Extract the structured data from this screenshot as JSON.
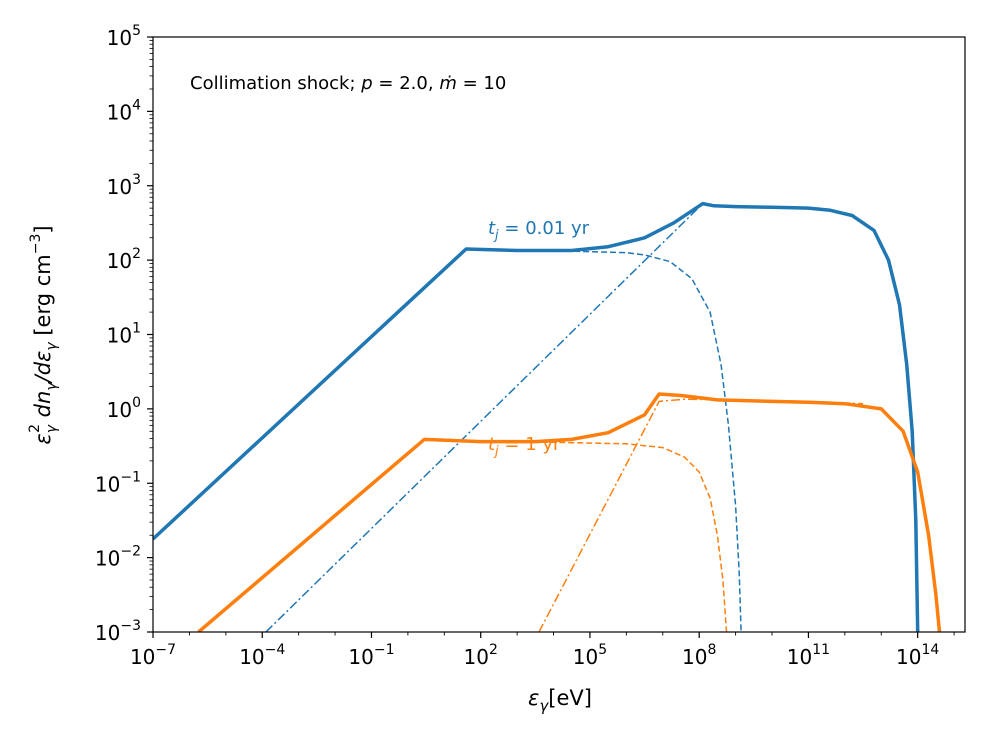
{
  "chart_data": {
    "type": "line",
    "title": "",
    "annotation": "Collimation shock; p = 2.0, ṁ = 10",
    "annotation_parts": {
      "prefix": "Collimation shock; ",
      "p_symbol": "p",
      "p_value": " = 2.0,  ",
      "m_symbol": "ṁ",
      "m_value": " = 10"
    },
    "xlabel": "εγ[eV]",
    "xlabel_parts": {
      "symbol": "ε",
      "sub": "γ",
      "unit": "[eV]"
    },
    "ylabel": "εγ² dnγ/dεγ [erg cm⁻³]",
    "ylabel_parts": {
      "eps": "ε",
      "sub_gamma": "γ",
      "sup_two": "2",
      "dn": " dn",
      "slash_d": "/dε",
      "unit": " [erg cm",
      "unit_exp": "−3",
      "unit_close": "]"
    },
    "xscale": "log",
    "yscale": "log",
    "xlim_exp": [
      -7,
      15.3
    ],
    "ylim_exp": [
      -3,
      5
    ],
    "x_ticks": [
      {
        "base": "10",
        "exp": "−7",
        "value": -7
      },
      {
        "base": "10",
        "exp": "−4",
        "value": -4
      },
      {
        "base": "10",
        "exp": "−1",
        "value": -1
      },
      {
        "base": "10",
        "exp": "2",
        "value": 2
      },
      {
        "base": "10",
        "exp": "5",
        "value": 5
      },
      {
        "base": "10",
        "exp": "8",
        "value": 8
      },
      {
        "base": "10",
        "exp": "11",
        "value": 11
      },
      {
        "base": "10",
        "exp": "14",
        "value": 14
      }
    ],
    "y_ticks": [
      {
        "base": "10",
        "exp": "−3",
        "value": -3
      },
      {
        "base": "10",
        "exp": "−2",
        "value": -2
      },
      {
        "base": "10",
        "exp": "−1",
        "value": -1
      },
      {
        "base": "10",
        "exp": "0",
        "value": 0
      },
      {
        "base": "10",
        "exp": "1",
        "value": 1
      },
      {
        "base": "10",
        "exp": "2",
        "value": 2
      },
      {
        "base": "10",
        "exp": "3",
        "value": 3
      },
      {
        "base": "10",
        "exp": "4",
        "value": 4
      },
      {
        "base": "10",
        "exp": "5",
        "value": 5
      }
    ],
    "grid": false,
    "legend": "none",
    "colors": {
      "blue": "#1f77b4",
      "orange": "#ff7f0e"
    },
    "curve_labels": [
      {
        "symbol": "t",
        "sub": "j",
        "value": " = 0.01 yr",
        "color": "#1f77b4",
        "x_exp": 2.2,
        "y_exp": 2.35
      },
      {
        "symbol": "t",
        "sub": "j",
        "value": " = 1 yr",
        "color": "#ff7f0e",
        "x_exp": 2.2,
        "y_exp": -0.55
      }
    ],
    "series": [
      {
        "label": "t_j = 0.01 yr, total",
        "color": "#1f77b4",
        "style": "solid",
        "width": 3.5,
        "points": [
          [
            -7,
            -1.75
          ],
          [
            1.6,
            2.15
          ],
          [
            3,
            2.13
          ],
          [
            4.5,
            2.13
          ],
          [
            5.5,
            2.18
          ],
          [
            6.5,
            2.3
          ],
          [
            7.3,
            2.5
          ],
          [
            8.1,
            2.76
          ],
          [
            8.4,
            2.73
          ],
          [
            9,
            2.72
          ],
          [
            10,
            2.71
          ],
          [
            11,
            2.7
          ],
          [
            11.6,
            2.67
          ],
          [
            12.2,
            2.6
          ],
          [
            12.8,
            2.4
          ],
          [
            13.2,
            2.0
          ],
          [
            13.5,
            1.4
          ],
          [
            13.7,
            0.6
          ],
          [
            13.85,
            -0.3
          ],
          [
            13.95,
            -1.5
          ],
          [
            14.0,
            -3
          ]
        ]
      },
      {
        "label": "t_j = 0.01 yr, dashed",
        "color": "#1f77b4",
        "style": "dashed",
        "width": 1.5,
        "points": [
          [
            1.6,
            2.15
          ],
          [
            3,
            2.13
          ],
          [
            4.5,
            2.12
          ],
          [
            6,
            2.1
          ],
          [
            6.5,
            2.07
          ],
          [
            7.2,
            1.98
          ],
          [
            7.8,
            1.75
          ],
          [
            8.3,
            1.3
          ],
          [
            8.6,
            0.6
          ],
          [
            8.8,
            -0.2
          ],
          [
            9.0,
            -1.3
          ],
          [
            9.1,
            -2.2
          ],
          [
            9.15,
            -3
          ]
        ]
      },
      {
        "label": "t_j = 0.01 yr, dash-dot",
        "color": "#1f77b4",
        "style": "dashdot",
        "width": 1.5,
        "points": [
          [
            -3.9,
            -3
          ],
          [
            8.1,
            2.76
          ]
        ]
      },
      {
        "label": "t_j = 1 yr, total",
        "color": "#ff7f0e",
        "style": "solid",
        "width": 3.5,
        "points": [
          [
            -5.75,
            -3
          ],
          [
            0.45,
            -0.41
          ],
          [
            2,
            -0.44
          ],
          [
            3.5,
            -0.44
          ],
          [
            4.5,
            -0.41
          ],
          [
            5.5,
            -0.32
          ],
          [
            6.5,
            -0.08
          ],
          [
            6.9,
            0.2
          ],
          [
            7.5,
            0.18
          ],
          [
            8.5,
            0.12
          ],
          [
            10,
            0.1
          ],
          [
            11,
            0.09
          ],
          [
            12,
            0.07
          ],
          [
            13,
            0.0
          ],
          [
            13.6,
            -0.3
          ],
          [
            14.0,
            -0.85
          ],
          [
            14.3,
            -1.7
          ],
          [
            14.5,
            -2.5
          ],
          [
            14.6,
            -3
          ]
        ]
      },
      {
        "label": "t_j = 1 yr, dashed",
        "color": "#ff7f0e",
        "style": "dashed",
        "width": 1.5,
        "points": [
          [
            0.45,
            -0.41
          ],
          [
            2,
            -0.44
          ],
          [
            4,
            -0.45
          ],
          [
            6,
            -0.47
          ],
          [
            7,
            -0.52
          ],
          [
            7.6,
            -0.65
          ],
          [
            8.0,
            -0.85
          ],
          [
            8.3,
            -1.2
          ],
          [
            8.5,
            -1.7
          ],
          [
            8.65,
            -2.3
          ],
          [
            8.75,
            -3
          ]
        ]
      },
      {
        "label": "t_j = 1 yr, dash-dot",
        "color": "#ff7f0e",
        "style": "dashdot",
        "width": 1.5,
        "points": [
          [
            3.6,
            -3
          ],
          [
            6.9,
            0.1
          ],
          [
            7.6,
            0.13
          ],
          [
            9,
            0.12
          ],
          [
            11,
            0.1
          ],
          [
            12.5,
            0.07
          ]
        ]
      }
    ]
  }
}
